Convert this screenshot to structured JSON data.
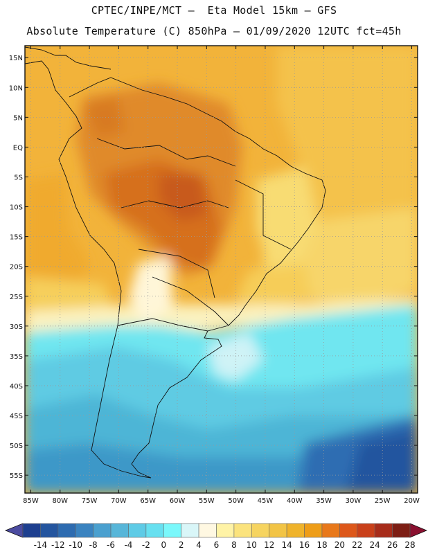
{
  "title": {
    "line1": "CPTEC/INPE/MCT –  Eta Model 15km – GFS",
    "line2": "Absolute Temperature (C) 850hPa – 01/09/2020 12UTC fct=45h"
  },
  "axes": {
    "lat_labels": [
      "15N",
      "10N",
      "5N",
      "EQ",
      "5S",
      "10S",
      "15S",
      "20S",
      "25S",
      "30S",
      "35S",
      "40S",
      "45S",
      "50S",
      "55S"
    ],
    "lat_values": [
      15,
      10,
      5,
      0,
      -5,
      -10,
      -15,
      -20,
      -25,
      -30,
      -35,
      -40,
      -45,
      -50,
      -55
    ],
    "lon_labels": [
      "85W",
      "80W",
      "75W",
      "70W",
      "65W",
      "60W",
      "55W",
      "50W",
      "45W",
      "40W",
      "35W",
      "30W",
      "25W",
      "20W"
    ],
    "lon_values": [
      -85,
      -80,
      -75,
      -70,
      -65,
      -60,
      -55,
      -50,
      -45,
      -40,
      -35,
      -30,
      -25,
      -20
    ],
    "lat_range": [
      -58,
      17
    ],
    "lon_range": [
      -86,
      -19
    ]
  },
  "colorbar": {
    "labels": [
      "-14",
      "-12",
      "-10",
      "-8",
      "-6",
      "-4",
      "-2",
      "0",
      "2",
      "4",
      "6",
      "8",
      "10",
      "12",
      "14",
      "16",
      "18",
      "20",
      "22",
      "24",
      "26",
      "28"
    ],
    "colors": [
      "#1d3f8f",
      "#24559f",
      "#2d6bb0",
      "#3a83c0",
      "#4aa0cf",
      "#57b6d9",
      "#5ecbe6",
      "#67e0f0",
      "#7af8fb",
      "#d9f6f8",
      "#fff8e2",
      "#fff3a6",
      "#fbe37d",
      "#f6d460",
      "#f2c445",
      "#efb32b",
      "#ee9d18",
      "#e8781a",
      "#dd571a",
      "#c9401a",
      "#a72c1a",
      "#7d1e14"
    ],
    "min_color": "#4b4ba0",
    "max_color": "#8a1030"
  }
}
